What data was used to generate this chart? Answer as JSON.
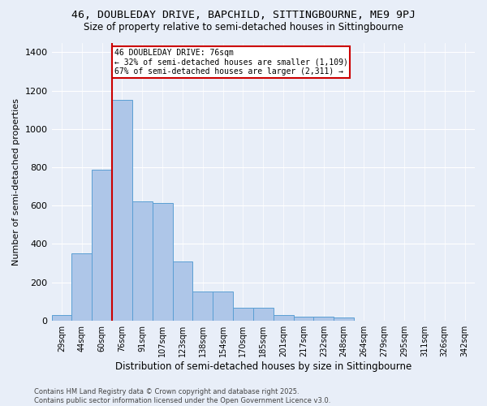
{
  "title_line1": "46, DOUBLEDAY DRIVE, BAPCHILD, SITTINGBOURNE, ME9 9PJ",
  "title_line2": "Size of property relative to semi-detached houses in Sittingbourne",
  "xlabel": "Distribution of semi-detached houses by size in Sittingbourne",
  "ylabel": "Number of semi-detached properties",
  "categories": [
    "29sqm",
    "44sqm",
    "60sqm",
    "76sqm",
    "91sqm",
    "107sqm",
    "123sqm",
    "138sqm",
    "154sqm",
    "170sqm",
    "185sqm",
    "201sqm",
    "217sqm",
    "232sqm",
    "248sqm",
    "264sqm",
    "279sqm",
    "295sqm",
    "311sqm",
    "326sqm",
    "342sqm"
  ],
  "values": [
    30,
    350,
    785,
    1150,
    620,
    615,
    310,
    150,
    150,
    65,
    65,
    27,
    20,
    18,
    15,
    0,
    0,
    0,
    0,
    0,
    0
  ],
  "bar_color": "#aec6e8",
  "bar_edge_color": "#5a9fd4",
  "marker_index": 3,
  "annotation_title": "46 DOUBLEDAY DRIVE: 76sqm",
  "annotation_line2": "← 32% of semi-detached houses are smaller (1,109)",
  "annotation_line3": "67% of semi-detached houses are larger (2,311) →",
  "annotation_box_color": "#ffffff",
  "annotation_box_edge": "#cc0000",
  "vline_color": "#cc0000",
  "ylim": [
    0,
    1450
  ],
  "yticks": [
    0,
    200,
    400,
    600,
    800,
    1000,
    1200,
    1400
  ],
  "background_color": "#e8eef8",
  "grid_color": "#ffffff",
  "footer_line1": "Contains HM Land Registry data © Crown copyright and database right 2025.",
  "footer_line2": "Contains public sector information licensed under the Open Government Licence v3.0."
}
